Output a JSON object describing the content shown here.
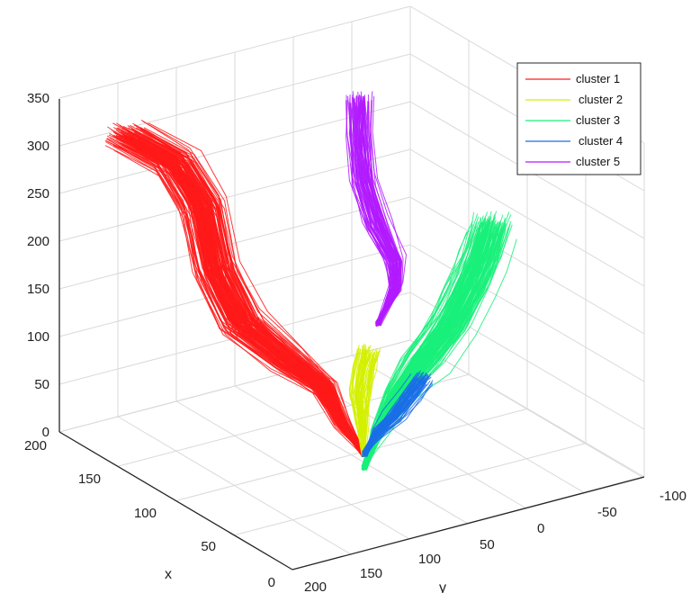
{
  "chart_data": {
    "type": "line",
    "title": "",
    "xlabel": "x",
    "ylabel": "y",
    "zlabel": "",
    "xlim": [
      0,
      200
    ],
    "ylim": [
      -100,
      200
    ],
    "zlim": [
      0,
      350
    ],
    "x_ticks": [
      "0",
      "50",
      "100",
      "150",
      "200"
    ],
    "y_ticks": [
      "-100",
      "-50",
      "0",
      "50",
      "100",
      "150",
      "200"
    ],
    "z_ticks": [
      "0",
      "50",
      "100",
      "150",
      "200",
      "250",
      "300",
      "350"
    ],
    "grid": true,
    "legend_position": "top-right",
    "series": [
      {
        "name": "cluster 1",
        "color": "#ff1a1a"
      },
      {
        "name": "cluster 2",
        "color": "#d4f000"
      },
      {
        "name": "cluster 3",
        "color": "#19f07a"
      },
      {
        "name": "cluster 4",
        "color": "#1a6ee6"
      },
      {
        "name": "cluster 5",
        "color": "#b21aff"
      }
    ]
  }
}
